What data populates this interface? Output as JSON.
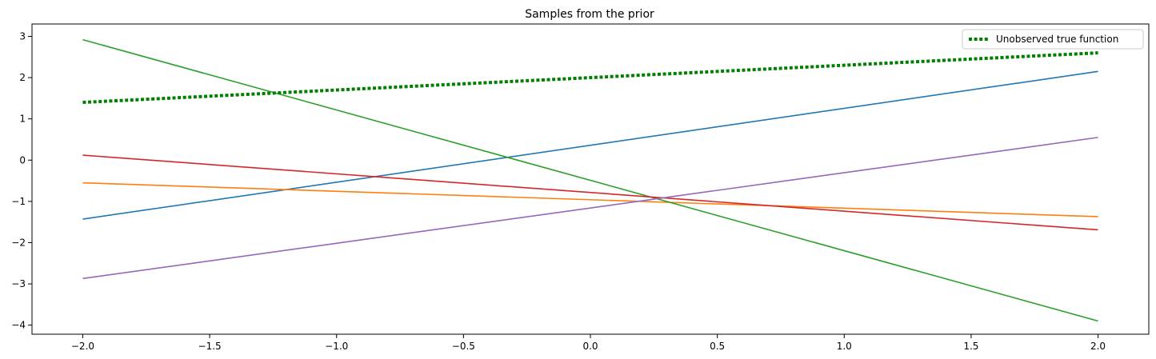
{
  "chart_data": {
    "type": "line",
    "title": "Samples from the prior",
    "xlabel": "",
    "ylabel": "",
    "xlim": [
      -2.2,
      2.2
    ],
    "ylim": [
      -4.22,
      3.3
    ],
    "xticks": [
      -2.0,
      -1.5,
      -1.0,
      -0.5,
      0.0,
      0.5,
      1.0,
      1.5,
      2.0
    ],
    "xtick_labels": [
      "−2.0",
      "−1.5",
      "−1.0",
      "−0.5",
      "0.0",
      "0.5",
      "1.0",
      "1.5",
      "2.0"
    ],
    "yticks": [
      -4,
      -3,
      -2,
      -1,
      0,
      1,
      2,
      3
    ],
    "ytick_labels": [
      "−4",
      "−3",
      "−2",
      "−1",
      "0",
      "1",
      "2",
      "3"
    ],
    "grid": false,
    "legend": {
      "position": "top-right",
      "entries": [
        "Unobserved true function"
      ]
    },
    "series": [
      {
        "x": [
          -2,
          2
        ],
        "y": [
          -1.43,
          2.15
        ],
        "color": "#1f77b4",
        "style": "solid"
      },
      {
        "x": [
          -2,
          2
        ],
        "y": [
          -0.55,
          -1.37
        ],
        "color": "#ff7f0e",
        "style": "solid"
      },
      {
        "x": [
          -2,
          2
        ],
        "y": [
          2.92,
          -3.9
        ],
        "color": "#2ca02c",
        "style": "solid"
      },
      {
        "x": [
          -2,
          2
        ],
        "y": [
          0.12,
          -1.69
        ],
        "color": "#d62728",
        "style": "solid"
      },
      {
        "x": [
          -2,
          2
        ],
        "y": [
          -2.87,
          0.55
        ],
        "color": "#9467bd",
        "style": "solid"
      },
      {
        "name": "Unobserved true function",
        "x": [
          -2,
          2
        ],
        "y": [
          1.4,
          2.6
        ],
        "color": "#008000",
        "style": "dotted"
      }
    ]
  }
}
